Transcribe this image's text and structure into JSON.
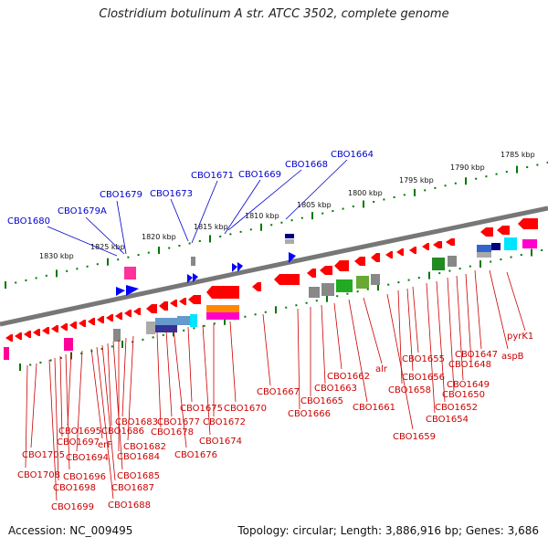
{
  "title": "Clostridium botulinum A str. ATCC 3502, complete genome",
  "accession": "Accession: NC_009495",
  "summary": "Topology: circular; Length: 3,886,916 bp; Genes: 3,686",
  "colors": {
    "backbone": "#777777",
    "forward_gene": "#ff0000",
    "reverse_gene": "#0000ff",
    "tick": "#007700",
    "label_forward": "#0000cc",
    "label_reverse": "#cc0000"
  },
  "scale_labels": [
    "1785 kbp",
    "1790 kbp",
    "1795 kbp",
    "1800 kbp",
    "1805 kbp",
    "1810 kbp",
    "1815 kbp",
    "1820 kbp",
    "1825 kbp",
    "1830 kbp"
  ],
  "top_gene_labels": [
    "CBO1664",
    "CBO1668",
    "CBO1669",
    "CBO1671",
    "CBO1673",
    "CBO1679",
    "CBO1679A",
    "CBO1680"
  ],
  "bottom_gene_labels": [
    "pyrK1",
    "aspB",
    "CBO1647",
    "CBO1648",
    "CBO1649",
    "CBO1650",
    "CBO1652",
    "CBO1654",
    "CBO1655",
    "CBO1656",
    "CBO1658",
    "CBO1659",
    "alr",
    "CBO1661",
    "CBO1662",
    "CBO1663",
    "CBO1665",
    "CBO1666",
    "CBO1667",
    "CBO1670",
    "CBO1672",
    "CBO1674",
    "CBO1675",
    "CBO1676",
    "CBO1677",
    "CBO1678",
    "CBO1682",
    "CBO1683",
    "CBO1684",
    "CBO1685",
    "CBO1686",
    "CBO1687",
    "CBO1688",
    "erF",
    "CBO1694",
    "CBO1695",
    "CBO1696",
    "CBO1697",
    "CBO1698",
    "CBO1699",
    "CBO1705",
    "CBO1708"
  ]
}
